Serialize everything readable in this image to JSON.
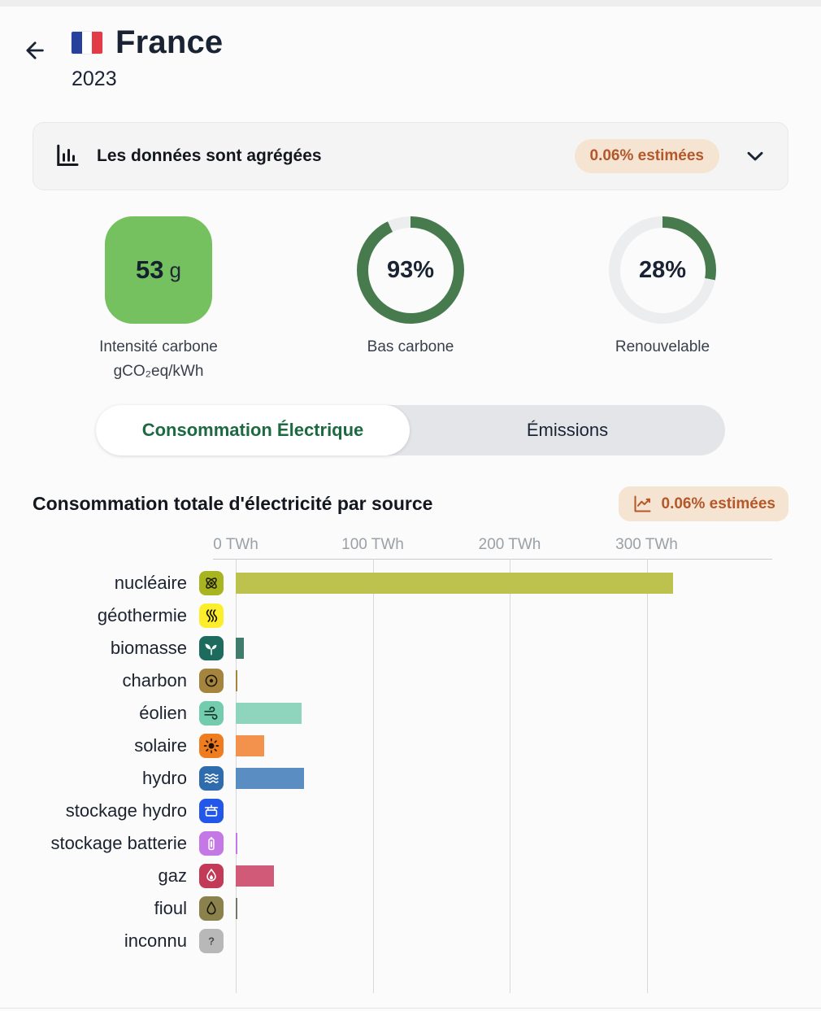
{
  "header": {
    "back_icon": "arrow-left",
    "flag_icon": "france-flag",
    "title": "France",
    "year": "2023"
  },
  "banner": {
    "icon": "bar-chart",
    "text": "Les données sont agrégées",
    "badge": "0.06% estimées",
    "chevron_icon": "chevron-down"
  },
  "stats": {
    "ring_color": "#477b4e",
    "ring_track": "#ecedef",
    "carbon_intensity": {
      "value": "53",
      "unit": "g",
      "label": "Intensité carbone",
      "sublabel": "gCO₂eq/kWh",
      "box_color": "#76c15f"
    },
    "low_carbon": {
      "value": "93%",
      "percent": 93,
      "label": "Bas carbone"
    },
    "renewable": {
      "value": "28%",
      "percent": 28,
      "label": "Renouvelable"
    }
  },
  "tabs": [
    {
      "label": "Consommation Électrique",
      "active": true
    },
    {
      "label": "Émissions",
      "active": false
    }
  ],
  "section": {
    "title": "Consommation totale d'électricité par source",
    "badge": "0.06% estimées",
    "badge_icon": "trend-line"
  },
  "chart_data": {
    "type": "bar",
    "orientation": "horizontal",
    "title": "Consommation totale d'électricité par source",
    "unit": "TWh",
    "x_ticks": [
      "0 TWh",
      "100 TWh",
      "200 TWh",
      "300 TWh"
    ],
    "x_tick_values": [
      0,
      100,
      200,
      300
    ],
    "xlim": [
      0,
      392
    ],
    "grid": true,
    "categories": [
      "nucléaire",
      "géothermie",
      "biomasse",
      "charbon",
      "éolien",
      "solaire",
      "hydro",
      "stockage hydro",
      "stockage batterie",
      "gaz",
      "fioul",
      "inconnu"
    ],
    "values": [
      319,
      0,
      6,
      0.9,
      48,
      21,
      50,
      0,
      0.4,
      28,
      1.3,
      0
    ],
    "rows": [
      {
        "label": "nucléaire",
        "icon": "atom",
        "icon_bg": "#a9b421",
        "icon_fg": "#1c1c06",
        "value_twh": 319,
        "bar_color": "#bcc24d"
      },
      {
        "label": "géothermie",
        "icon": "heat",
        "icon_bg": "#fdee2b",
        "icon_fg": "#141404",
        "value_twh": 0,
        "bar_color": "#fdee2b"
      },
      {
        "label": "biomasse",
        "icon": "sprout",
        "icon_bg": "#1c6b5c",
        "icon_fg": "#ffffff",
        "value_twh": 6,
        "bar_color": "#417b6c"
      },
      {
        "label": "charbon",
        "icon": "coal",
        "icon_bg": "#a5853d",
        "icon_fg": "#1b1506",
        "value_twh": 0.9,
        "bar_color": "#a5853d"
      },
      {
        "label": "éolien",
        "icon": "wind",
        "icon_bg": "#73ccae",
        "icon_fg": "#113629",
        "value_twh": 48,
        "bar_color": "#8fd4bd"
      },
      {
        "label": "solaire",
        "icon": "sun",
        "icon_bg": "#ef7d1f",
        "icon_fg": "#1c1205",
        "value_twh": 21,
        "bar_color": "#f2924c"
      },
      {
        "label": "hydro",
        "icon": "waves",
        "icon_bg": "#2e6cad",
        "icon_fg": "#ffffff",
        "value_twh": 50,
        "bar_color": "#5a8dc1"
      },
      {
        "label": "stockage hydro",
        "icon": "dam",
        "icon_bg": "#2257e9",
        "icon_fg": "#ffffff",
        "value_twh": 0,
        "bar_color": "#2257e9"
      },
      {
        "label": "stockage batterie",
        "icon": "battery",
        "icon_bg": "#c478e6",
        "icon_fg": "#ffffff",
        "value_twh": 0.4,
        "bar_color": "#c478e6"
      },
      {
        "label": "gaz",
        "icon": "flame",
        "icon_bg": "#c23a57",
        "icon_fg": "#ffffff",
        "value_twh": 28,
        "bar_color": "#d15a78"
      },
      {
        "label": "fioul",
        "icon": "droplet",
        "icon_bg": "#8b814d",
        "icon_fg": "#17140a",
        "value_twh": 1.3,
        "bar_color": "#77766b"
      },
      {
        "label": "inconnu",
        "icon": "question",
        "icon_bg": "#b8b8b8",
        "icon_fg": "#4a4a4a",
        "value_twh": 0,
        "bar_color": "#b8b8b8"
      }
    ]
  }
}
